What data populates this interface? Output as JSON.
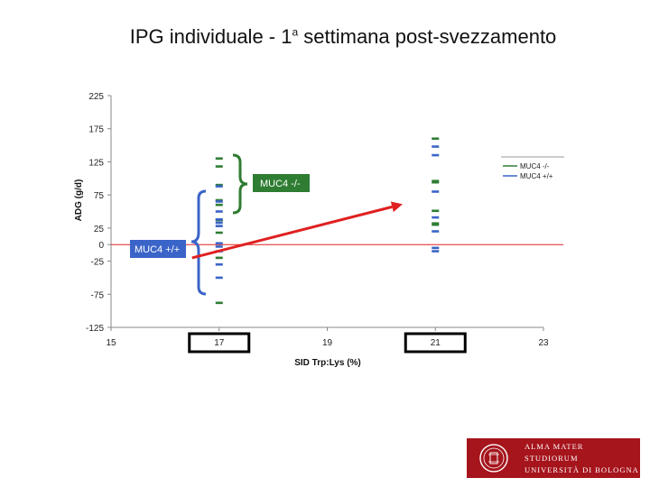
{
  "slide": {
    "title_main": "IPG individuale - 1",
    "title_sup": "a",
    "title_rest": " settimana post-svezzamento"
  },
  "logo": {
    "line1": "ALMA MATER STUDIORUM",
    "line2": "UNIVERSITÀ DI BOLOGNA"
  },
  "chart_data": {
    "type": "scatter",
    "xlabel": "SID Trp:Lys (%)",
    "ylabel": "ADG (g/d)",
    "xlim": [
      15,
      23
    ],
    "ylim": [
      -125,
      225
    ],
    "xticks": [
      15,
      17,
      19,
      21,
      23
    ],
    "yticks": [
      225,
      175,
      125,
      75,
      25,
      0,
      -25,
      -75,
      -125
    ],
    "highlighted_xticks": [
      17,
      21
    ],
    "reference_line_y": 0,
    "grid": false,
    "legend_position": "right",
    "series": [
      {
        "name": "MUC4 -/-",
        "color": "#2e7d32",
        "points": [
          {
            "x": 17,
            "y": 130
          },
          {
            "x": 17,
            "y": 118
          },
          {
            "x": 17,
            "y": 90
          },
          {
            "x": 17,
            "y": 67
          },
          {
            "x": 17,
            "y": 60
          },
          {
            "x": 17,
            "y": 37
          },
          {
            "x": 17,
            "y": 18
          },
          {
            "x": 17,
            "y": -20
          },
          {
            "x": 17,
            "y": -88
          },
          {
            "x": 21,
            "y": 160
          },
          {
            "x": 21,
            "y": 96
          },
          {
            "x": 21,
            "y": 94
          },
          {
            "x": 21,
            "y": 51
          },
          {
            "x": 21,
            "y": 32
          },
          {
            "x": 21,
            "y": 30
          }
        ]
      },
      {
        "name": "MUC4 +/+",
        "color": "#3a64c8",
        "points": [
          {
            "x": 17,
            "y": 88
          },
          {
            "x": 17,
            "y": 65
          },
          {
            "x": 17,
            "y": 50
          },
          {
            "x": 17,
            "y": 38
          },
          {
            "x": 17,
            "y": 33
          },
          {
            "x": 17,
            "y": 28
          },
          {
            "x": 17,
            "y": 2
          },
          {
            "x": 17,
            "y": -3
          },
          {
            "x": 17,
            "y": -10
          },
          {
            "x": 17,
            "y": -30
          },
          {
            "x": 17,
            "y": -50
          },
          {
            "x": 21,
            "y": 148
          },
          {
            "x": 21,
            "y": 135
          },
          {
            "x": 21,
            "y": 80
          },
          {
            "x": 21,
            "y": 41
          },
          {
            "x": 21,
            "y": 20
          },
          {
            "x": 21,
            "y": -5
          },
          {
            "x": 21,
            "y": -10
          }
        ]
      }
    ],
    "annotations": [
      {
        "text": "MUC4 -/-",
        "bg": "#2e7d32"
      },
      {
        "text": "MUC4 +/+",
        "bg": "#3a64c8"
      }
    ],
    "arrow": {
      "from": [
        16.5,
        -20
      ],
      "to": [
        20.2,
        57
      ],
      "color": "#e02020"
    }
  }
}
